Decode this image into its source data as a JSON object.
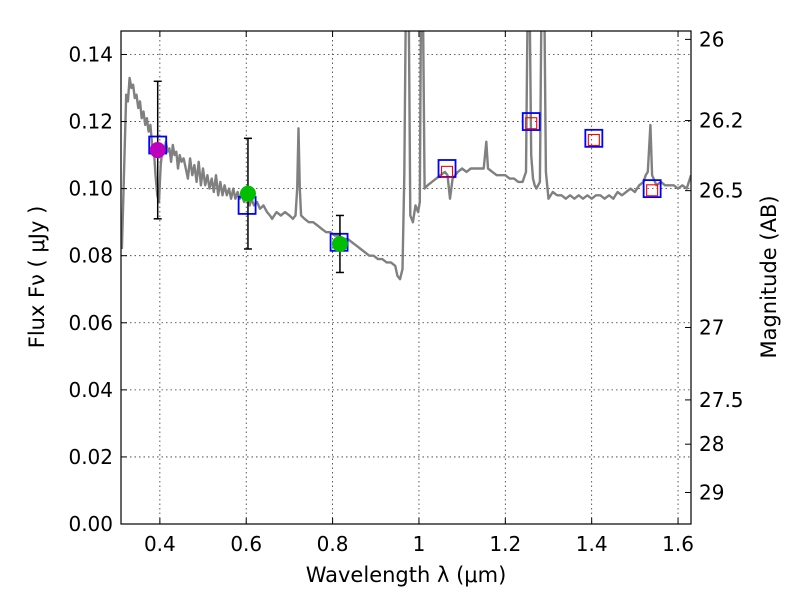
{
  "chart_data": {
    "type": "scatter",
    "title": "",
    "xlabel": "Wavelength  λ (μm)",
    "ylabel": "Flux  Fν  ( μJy )",
    "y2label": "Magnitude (AB)",
    "xlim": [
      0.31,
      1.63
    ],
    "ylim": [
      0.0,
      0.147
    ],
    "grid": true,
    "x_ticks": [
      {
        "value": 0.4,
        "label": "0.4"
      },
      {
        "value": 0.6,
        "label": "0.6"
      },
      {
        "value": 0.8,
        "label": "0.8"
      },
      {
        "value": 1.0,
        "label": "1"
      },
      {
        "value": 1.2,
        "label": "1.2"
      },
      {
        "value": 1.4,
        "label": "1.4"
      },
      {
        "value": 1.6,
        "label": "1.6"
      }
    ],
    "y_ticks": [
      {
        "value": 0.0,
        "label": "0.00"
      },
      {
        "value": 0.02,
        "label": "0.02"
      },
      {
        "value": 0.04,
        "label": "0.04"
      },
      {
        "value": 0.06,
        "label": "0.06"
      },
      {
        "value": 0.08,
        "label": "0.08"
      },
      {
        "value": 0.1,
        "label": "0.10"
      },
      {
        "value": 0.12,
        "label": "0.12"
      },
      {
        "value": 0.14,
        "label": "0.14"
      }
    ],
    "y2_ticks": [
      {
        "flux": 0.1445,
        "label": "26"
      },
      {
        "flux": 0.1203,
        "label": "26.2"
      },
      {
        "flux": 0.0994,
        "label": "26.5"
      },
      {
        "flux": 0.0586,
        "label": "27"
      },
      {
        "flux": 0.037,
        "label": "27.5"
      },
      {
        "flux": 0.0238,
        "label": "28"
      },
      {
        "flux": 0.0094,
        "label": "29"
      }
    ],
    "series": [
      {
        "kind": "line",
        "color": "#808080",
        "points": [
          [
            0.312,
            0.082
          ],
          [
            0.318,
            0.11
          ],
          [
            0.322,
            0.128
          ],
          [
            0.326,
            0.126
          ],
          [
            0.33,
            0.133
          ],
          [
            0.334,
            0.13
          ],
          [
            0.338,
            0.131
          ],
          [
            0.342,
            0.127
          ],
          [
            0.346,
            0.128
          ],
          [
            0.35,
            0.124
          ],
          [
            0.354,
            0.126
          ],
          [
            0.358,
            0.121
          ],
          [
            0.362,
            0.123
          ],
          [
            0.366,
            0.119
          ],
          [
            0.37,
            0.121
          ],
          [
            0.374,
            0.117
          ],
          [
            0.378,
            0.119
          ],
          [
            0.382,
            0.113
          ],
          [
            0.386,
            0.112
          ],
          [
            0.39,
            0.104
          ],
          [
            0.394,
            0.098
          ],
          [
            0.398,
            0.096
          ],
          [
            0.402,
            0.107
          ],
          [
            0.406,
            0.112
          ],
          [
            0.41,
            0.111
          ],
          [
            0.414,
            0.114
          ],
          [
            0.418,
            0.111
          ],
          [
            0.422,
            0.112
          ],
          [
            0.426,
            0.108
          ],
          [
            0.43,
            0.113
          ],
          [
            0.434,
            0.11
          ],
          [
            0.438,
            0.111
          ],
          [
            0.442,
            0.106
          ],
          [
            0.446,
            0.11
          ],
          [
            0.45,
            0.108
          ],
          [
            0.455,
            0.109
          ],
          [
            0.46,
            0.106
          ],
          [
            0.465,
            0.103
          ],
          [
            0.47,
            0.109
          ],
          [
            0.475,
            0.104
          ],
          [
            0.48,
            0.107
          ],
          [
            0.485,
            0.102
          ],
          [
            0.49,
            0.108
          ],
          [
            0.495,
            0.101
          ],
          [
            0.5,
            0.106
          ],
          [
            0.505,
            0.101
          ],
          [
            0.51,
            0.104
          ],
          [
            0.515,
            0.1
          ],
          [
            0.52,
            0.103
          ],
          [
            0.525,
            0.099
          ],
          [
            0.53,
            0.104
          ],
          [
            0.535,
            0.098
          ],
          [
            0.54,
            0.102
          ],
          [
            0.545,
            0.098
          ],
          [
            0.55,
            0.101
          ],
          [
            0.555,
            0.098
          ],
          [
            0.56,
            0.1
          ],
          [
            0.565,
            0.097
          ],
          [
            0.57,
            0.1
          ],
          [
            0.575,
            0.097
          ],
          [
            0.58,
            0.099
          ],
          [
            0.585,
            0.097
          ],
          [
            0.59,
            0.098
          ],
          [
            0.595,
            0.096
          ],
          [
            0.6,
            0.097
          ],
          [
            0.604,
            0.0985
          ],
          [
            0.608,
            0.095
          ],
          [
            0.612,
            0.097
          ],
          [
            0.618,
            0.095
          ],
          [
            0.625,
            0.096
          ],
          [
            0.632,
            0.094
          ],
          [
            0.64,
            0.095
          ],
          [
            0.648,
            0.093
          ],
          [
            0.655,
            0.092
          ],
          [
            0.66,
            0.091
          ],
          [
            0.67,
            0.093
          ],
          [
            0.68,
            0.092
          ],
          [
            0.69,
            0.093
          ],
          [
            0.7,
            0.092
          ],
          [
            0.708,
            0.091
          ],
          [
            0.714,
            0.092
          ],
          [
            0.718,
            0.1
          ],
          [
            0.721,
            0.118
          ],
          [
            0.724,
            0.1
          ],
          [
            0.727,
            0.092
          ],
          [
            0.735,
            0.091
          ],
          [
            0.745,
            0.09
          ],
          [
            0.755,
            0.09
          ],
          [
            0.765,
            0.089
          ],
          [
            0.775,
            0.088
          ],
          [
            0.785,
            0.087
          ],
          [
            0.795,
            0.087
          ],
          [
            0.805,
            0.086
          ],
          [
            0.815,
            0.086
          ],
          [
            0.825,
            0.085
          ],
          [
            0.835,
            0.085
          ],
          [
            0.845,
            0.084
          ],
          [
            0.855,
            0.083
          ],
          [
            0.865,
            0.082
          ],
          [
            0.875,
            0.081
          ],
          [
            0.885,
            0.08
          ],
          [
            0.895,
            0.08
          ],
          [
            0.905,
            0.079
          ],
          [
            0.915,
            0.079
          ],
          [
            0.925,
            0.078
          ],
          [
            0.935,
            0.078
          ],
          [
            0.945,
            0.077
          ],
          [
            0.95,
            0.074
          ],
          [
            0.956,
            0.073
          ],
          [
            0.962,
            0.076
          ],
          [
            0.966,
            0.104
          ],
          [
            0.97,
            0.16
          ],
          [
            0.976,
            0.16
          ],
          [
            0.98,
            0.092
          ],
          [
            0.986,
            0.09
          ],
          [
            0.992,
            0.095
          ],
          [
            0.998,
            0.093
          ],
          [
            1.002,
            0.096
          ],
          [
            1.005,
            0.16
          ],
          [
            1.009,
            0.16
          ],
          [
            1.013,
            0.1
          ],
          [
            1.02,
            0.101
          ],
          [
            1.03,
            0.102
          ],
          [
            1.04,
            0.103
          ],
          [
            1.05,
            0.104
          ],
          [
            1.06,
            0.105
          ],
          [
            1.066,
            0.104
          ],
          [
            1.072,
            0.097
          ],
          [
            1.078,
            0.103
          ],
          [
            1.09,
            0.105
          ],
          [
            1.1,
            0.106
          ],
          [
            1.11,
            0.105
          ],
          [
            1.12,
            0.106
          ],
          [
            1.13,
            0.106
          ],
          [
            1.14,
            0.106
          ],
          [
            1.15,
            0.106
          ],
          [
            1.156,
            0.114
          ],
          [
            1.16,
            0.106
          ],
          [
            1.17,
            0.105
          ],
          [
            1.18,
            0.104
          ],
          [
            1.19,
            0.104
          ],
          [
            1.2,
            0.104
          ],
          [
            1.21,
            0.103
          ],
          [
            1.22,
            0.103
          ],
          [
            1.23,
            0.102
          ],
          [
            1.24,
            0.102
          ],
          [
            1.248,
            0.105
          ],
          [
            1.252,
            0.16
          ],
          [
            1.256,
            0.16
          ],
          [
            1.26,
            0.11
          ],
          [
            1.264,
            0.103
          ],
          [
            1.268,
            0.101
          ],
          [
            1.272,
            0.1
          ],
          [
            1.28,
            0.102
          ],
          [
            1.284,
            0.16
          ],
          [
            1.29,
            0.16
          ],
          [
            1.294,
            0.105
          ],
          [
            1.3,
            0.097
          ],
          [
            1.31,
            0.099
          ],
          [
            1.32,
            0.098
          ],
          [
            1.33,
            0.098
          ],
          [
            1.34,
            0.097
          ],
          [
            1.35,
            0.098
          ],
          [
            1.36,
            0.097
          ],
          [
            1.37,
            0.098
          ],
          [
            1.38,
            0.097
          ],
          [
            1.39,
            0.098
          ],
          [
            1.4,
            0.097
          ],
          [
            1.41,
            0.098
          ],
          [
            1.42,
            0.098
          ],
          [
            1.43,
            0.097
          ],
          [
            1.44,
            0.098
          ],
          [
            1.45,
            0.097
          ],
          [
            1.46,
            0.099
          ],
          [
            1.47,
            0.098
          ],
          [
            1.48,
            0.099
          ],
          [
            1.49,
            0.1
          ],
          [
            1.5,
            0.099
          ],
          [
            1.51,
            0.101
          ],
          [
            1.52,
            0.102
          ],
          [
            1.525,
            0.104
          ],
          [
            1.53,
            0.105
          ],
          [
            1.536,
            0.119
          ],
          [
            1.54,
            0.104
          ],
          [
            1.55,
            0.101
          ],
          [
            1.56,
            0.102
          ],
          [
            1.57,
            0.101
          ],
          [
            1.58,
            0.101
          ],
          [
            1.59,
            0.101
          ],
          [
            1.6,
            0.1
          ],
          [
            1.61,
            0.101
          ],
          [
            1.62,
            0.1
          ],
          [
            1.63,
            0.104
          ]
        ]
      },
      {
        "kind": "model_points",
        "marker": "blue-square",
        "color": "#0000ff",
        "points": [
          [
            0.395,
            0.113
          ],
          [
            0.602,
            0.095
          ],
          [
            0.815,
            0.084
          ],
          [
            1.065,
            0.106
          ],
          [
            1.26,
            0.12
          ],
          [
            1.405,
            0.115
          ],
          [
            1.54,
            0.1
          ]
        ]
      },
      {
        "kind": "upper_limits",
        "marker": "red-square",
        "color": "#ff0000",
        "points": [
          [
            1.065,
            0.105
          ],
          [
            1.26,
            0.1195
          ],
          [
            1.405,
            0.1145
          ],
          [
            1.54,
            0.0995
          ]
        ]
      },
      {
        "kind": "observed",
        "marker": "circle",
        "points": [
          {
            "x": 0.395,
            "y": 0.1115,
            "yerr": [
              0.0205,
              0.0205
            ],
            "color": "#bf00bf"
          },
          {
            "x": 0.604,
            "y": 0.0985,
            "yerr": [
              0.0165,
              0.0165
            ],
            "color": "#00bf00"
          },
          {
            "x": 0.817,
            "y": 0.0835,
            "yerr": [
              0.0085,
              0.0085
            ],
            "color": "#00bf00"
          }
        ]
      }
    ]
  }
}
